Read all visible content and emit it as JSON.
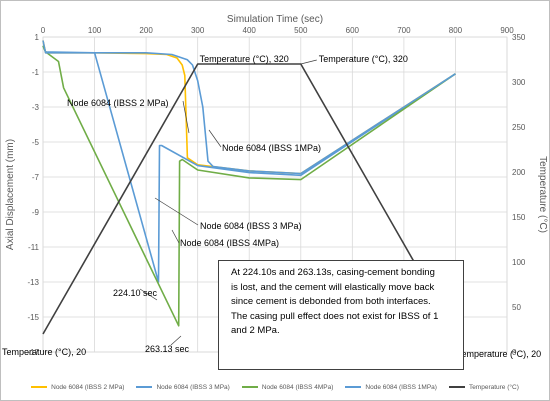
{
  "chart_data": {
    "type": "line",
    "xlabel": "Simulation Time (sec)",
    "ylabel": "Axial Displacement (mm)",
    "y2label": "Temperature (°C)",
    "xlim": [
      0,
      900
    ],
    "ylim": [
      -17,
      1
    ],
    "y2lim": [
      0,
      350
    ],
    "x_ticks": [
      "0",
      "100",
      "200",
      "300",
      "400",
      "500",
      "600",
      "700",
      "800",
      "900"
    ],
    "y_ticks": [
      "1",
      "-1",
      "-3",
      "-5",
      "-7",
      "-9",
      "-11",
      "-13",
      "-15",
      "-17"
    ],
    "y2_ticks": [
      "350",
      "300",
      "250",
      "200",
      "150",
      "100",
      "50",
      "0"
    ],
    "grid": true,
    "legend_position": "bottom",
    "series": [
      {
        "name": "Node 6084 (IBSS 2 MPa)",
        "axis": "left",
        "color": "#FFC000",
        "points": [
          [
            0,
            0.8
          ],
          [
            5,
            0.1
          ],
          [
            10,
            0.1
          ],
          [
            100,
            0.1
          ],
          [
            200,
            0.05
          ],
          [
            240,
            0
          ],
          [
            260,
            -0.2
          ],
          [
            270,
            -0.6
          ],
          [
            275,
            -1.2
          ],
          [
            280,
            -5.9
          ],
          [
            300,
            -6.3
          ],
          [
            400,
            -6.65
          ],
          [
            500,
            -6.8
          ],
          [
            800,
            -1.1
          ]
        ]
      },
      {
        "name": "Node 6084 (IBSS 3 MPa)",
        "axis": "left",
        "color": "#5B9BD5",
        "points": [
          [
            0,
            0.5
          ],
          [
            5,
            0.15
          ],
          [
            100,
            0.1
          ],
          [
            224.1,
            -13
          ],
          [
            226,
            -5.2
          ],
          [
            230,
            -5.2
          ],
          [
            300,
            -6.35
          ],
          [
            400,
            -6.75
          ],
          [
            500,
            -6.9
          ],
          [
            800,
            -1.1
          ]
        ]
      },
      {
        "name": "Node 6084 (IBSS 4MPa)",
        "axis": "left",
        "color": "#70AD47",
        "points": [
          [
            0,
            0.5
          ],
          [
            5,
            0.15
          ],
          [
            30,
            -0.4
          ],
          [
            40,
            -1.9
          ],
          [
            263.13,
            -15.5
          ],
          [
            265,
            -6.1
          ],
          [
            270,
            -6
          ],
          [
            300,
            -6.6
          ],
          [
            400,
            -7.05
          ],
          [
            500,
            -7.15
          ],
          [
            800,
            -1.1
          ]
        ]
      },
      {
        "name": "Node 6084 (IBSS 1MPa)",
        "axis": "left",
        "color": "#5B9BD5",
        "points": [
          [
            0,
            0.8
          ],
          [
            5,
            0.1
          ],
          [
            100,
            0.1
          ],
          [
            200,
            0.1
          ],
          [
            250,
            0
          ],
          [
            280,
            -0.3
          ],
          [
            290,
            -0.6
          ],
          [
            300,
            -1.5
          ],
          [
            310,
            -3
          ],
          [
            320,
            -6.1
          ],
          [
            330,
            -6.4
          ],
          [
            400,
            -6.65
          ],
          [
            500,
            -6.8
          ],
          [
            800,
            -1.1
          ]
        ]
      },
      {
        "name": "Temperature (°C)",
        "axis": "right",
        "color": "#404040",
        "points": [
          [
            0,
            20
          ],
          [
            300,
            320
          ],
          [
            500,
            320
          ],
          [
            800,
            20
          ]
        ]
      }
    ],
    "annotations": [
      {
        "text": "Temperature (°C), 320",
        "x": 300,
        "y2": 320
      },
      {
        "text": "Temperature (°C), 320",
        "x": 500,
        "y2": 320
      },
      {
        "text": "Temperature (°C), 20",
        "x": 0,
        "y2": 20
      },
      {
        "text": "Temperature (°C), 20",
        "x": 800,
        "y2": 20
      },
      {
        "text": "Node 6084 (IBSS 2 MPa)",
        "x": 280,
        "y": -2.0
      },
      {
        "text": "Node 6084 (IBSS 1MPa)",
        "x": 315,
        "y": -4.0
      },
      {
        "text": "Node 6084 (IBSS 3 MPa)",
        "x": 226,
        "y": -8.0
      },
      {
        "text": "Node 6084 (IBSS 4MPa)",
        "x": 265,
        "y": -9.4
      },
      {
        "text": "224.10 sec",
        "x": 224.1,
        "y": -13
      },
      {
        "text": "263.13 sec",
        "x": 263.13,
        "y": -15.5
      }
    ],
    "note": [
      "At 224.10s and 263.13s, casing-cement bonding",
      "is lost, and the cement will elastically move back",
      "since cement is debonded from both interfaces.",
      "The casing pull effect does not exist for IBSS of 1",
      "and 2 MPa."
    ]
  }
}
